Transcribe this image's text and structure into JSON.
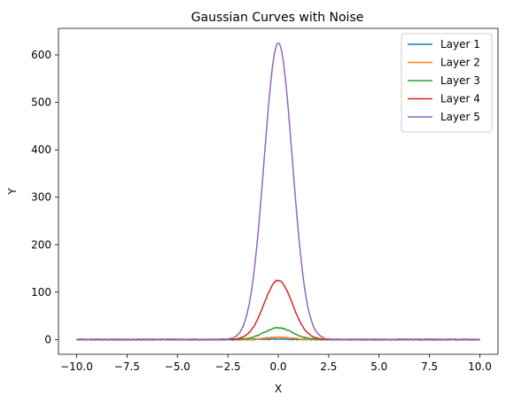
{
  "chart_data": {
    "type": "line",
    "title": "Gaussian Curves with Noise",
    "xlabel": "X",
    "ylabel": "Y",
    "xlim": [
      -10.9,
      10.9
    ],
    "ylim": [
      -31,
      656
    ],
    "x_ticks": [
      -10.0,
      -7.5,
      -5.0,
      -2.5,
      0.0,
      2.5,
      5.0,
      7.5,
      10.0
    ],
    "x_tick_labels": [
      "−10.0",
      "−7.5",
      "−5.0",
      "−2.5",
      "0.0",
      "2.5",
      "5.0",
      "7.5",
      "10.0"
    ],
    "y_ticks": [
      0,
      100,
      200,
      300,
      400,
      500,
      600
    ],
    "y_tick_labels": [
      "0",
      "100",
      "200",
      "300",
      "400",
      "500",
      "600"
    ],
    "grid": false,
    "legend_position": "top-right",
    "x_range": [
      -10,
      10
    ],
    "noise_level": 1,
    "series": [
      {
        "name": "Layer 1",
        "color": "#1f77b4",
        "peak": 1,
        "center": 0,
        "sigma": 0.7
      },
      {
        "name": "Layer 2",
        "color": "#ff7f0e",
        "peak": 5,
        "center": 0,
        "sigma": 0.7
      },
      {
        "name": "Layer 3",
        "color": "#2ca02c",
        "peak": 25,
        "center": 0,
        "sigma": 0.7
      },
      {
        "name": "Layer 4",
        "color": "#d62728",
        "peak": 125,
        "center": 0,
        "sigma": 0.7
      },
      {
        "name": "Layer 5",
        "color": "#9467bd",
        "peak": 625,
        "center": 0,
        "sigma": 0.7
      }
    ]
  }
}
